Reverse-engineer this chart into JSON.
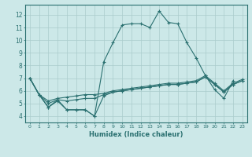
{
  "xlabel": "Humidex (Indice chaleur)",
  "ylabel": "",
  "bg_color": "#cce8e8",
  "grid_color": "#aacccc",
  "line_color": "#2a7070",
  "x_ticks": [
    0,
    1,
    2,
    3,
    4,
    5,
    6,
    7,
    8,
    9,
    10,
    11,
    12,
    13,
    14,
    15,
    16,
    17,
    18,
    19,
    20,
    21,
    22,
    23
  ],
  "y_ticks": [
    4,
    5,
    6,
    7,
    8,
    9,
    10,
    11,
    12
  ],
  "xlim": [
    -0.5,
    23.5
  ],
  "ylim": [
    3.5,
    12.8
  ],
  "series": [
    [
      7.0,
      5.7,
      4.7,
      5.3,
      4.5,
      4.5,
      4.5,
      4.0,
      8.3,
      9.8,
      11.2,
      11.3,
      11.3,
      11.0,
      12.3,
      11.4,
      11.3,
      9.8,
      8.6,
      7.2,
      6.1,
      5.4,
      6.8,
      null
    ],
    [
      7.0,
      5.7,
      4.7,
      5.2,
      4.5,
      4.5,
      4.5,
      4.0,
      5.6,
      5.9,
      6.0,
      6.1,
      6.2,
      6.3,
      6.4,
      6.5,
      6.5,
      6.6,
      6.7,
      7.1,
      6.5,
      5.9,
      6.5,
      6.8
    ],
    [
      7.0,
      5.7,
      5.0,
      5.3,
      5.2,
      5.3,
      5.4,
      5.4,
      5.7,
      5.9,
      6.0,
      6.1,
      6.2,
      6.3,
      6.4,
      6.5,
      6.5,
      6.6,
      6.7,
      7.1,
      6.5,
      5.9,
      6.5,
      6.8
    ],
    [
      7.0,
      5.7,
      5.2,
      5.4,
      5.5,
      5.6,
      5.7,
      5.7,
      5.8,
      6.0,
      6.1,
      6.2,
      6.3,
      6.4,
      6.5,
      6.6,
      6.6,
      6.7,
      6.8,
      7.2,
      6.6,
      6.0,
      6.6,
      6.9
    ]
  ]
}
